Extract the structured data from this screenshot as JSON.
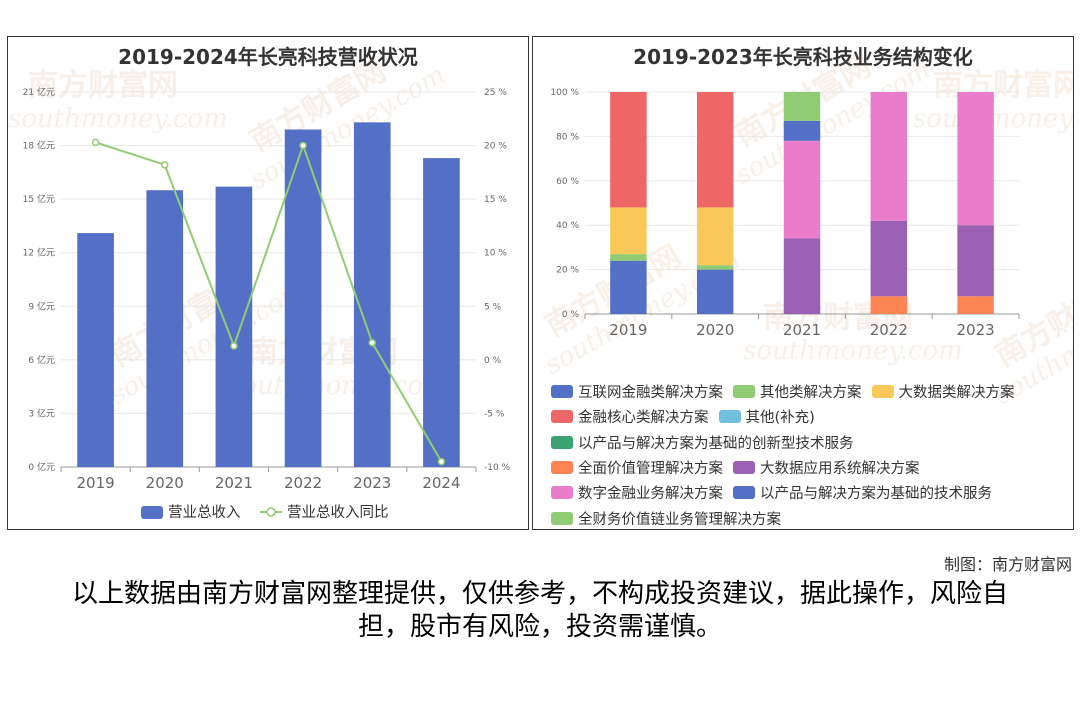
{
  "chart_data": [
    {
      "type": "bar+line",
      "title": "2019-2024年长亮科技营收状况",
      "categories": [
        "2019",
        "2020",
        "2021",
        "2022",
        "2023",
        "2024"
      ],
      "series": [
        {
          "name": "营业总收入",
          "type": "bar",
          "axis": "left",
          "color": "#5470c6",
          "values": [
            13.1,
            15.5,
            15.7,
            18.9,
            19.3,
            17.3
          ]
        },
        {
          "name": "营业总收入同比",
          "type": "line",
          "axis": "right",
          "color": "#91cc75",
          "values": [
            20.3,
            18.2,
            1.3,
            20.0,
            1.6,
            -9.5
          ]
        }
      ],
      "y_left": {
        "min": 0,
        "max": 21,
        "step": 3,
        "tick_labels": [
          "0 亿元",
          "3 亿元",
          "6 亿元",
          "9 亿元",
          "12 亿元",
          "15 亿元",
          "18 亿元",
          "21 亿元"
        ]
      },
      "y_right": {
        "min": -10,
        "max": 25,
        "step": 5,
        "tick_labels": [
          "-10 %",
          "-5 %",
          "0 %",
          "5 %",
          "10 %",
          "15 %",
          "20 %",
          "25 %"
        ]
      },
      "grid": true,
      "legend": "bottom"
    },
    {
      "type": "stacked_bar",
      "title": "2019-2023年长亮科技业务结构变化",
      "categories": [
        "2019",
        "2020",
        "2021",
        "2022",
        "2023"
      ],
      "y_tick_labels": [
        "0 %",
        "20 %",
        "40 %",
        "60 %",
        "80 %",
        "100 %"
      ],
      "ylim": [
        0,
        100
      ],
      "stack_order": [
        "全面价值管理解决方案",
        "互联网金融类解决方案",
        "其他类解决方案",
        "大数据类解决方案",
        "金融核心类解决方案",
        "大数据应用系统解决方案",
        "数字金融业务解决方案",
        "以产品与解决方案为基础的技术服务",
        "全财务价值链业务管理解决方案"
      ],
      "series": [
        {
          "name": "互联网金融类解决方案",
          "color": "#5470c6",
          "values": [
            24,
            20,
            0,
            0,
            0
          ]
        },
        {
          "name": "其他类解决方案",
          "color": "#91cc75",
          "values": [
            3,
            2,
            0,
            0,
            0
          ]
        },
        {
          "name": "大数据类解决方案",
          "color": "#fac858",
          "values": [
            21,
            26,
            0,
            0,
            0
          ]
        },
        {
          "name": "金融核心类解决方案",
          "color": "#ee6666",
          "values": [
            52,
            52,
            0,
            0,
            0
          ]
        },
        {
          "name": "其他(补充)",
          "color": "#73c0de",
          "values": [
            0,
            0,
            0,
            0,
            0
          ]
        },
        {
          "name": "以产品与解决方案为基础的创新型技术服务",
          "color": "#3ba272",
          "values": [
            0,
            0,
            0,
            0,
            0
          ]
        },
        {
          "name": "全面价值管理解决方案",
          "color": "#fc8452",
          "values": [
            0,
            0,
            0,
            8,
            8
          ]
        },
        {
          "name": "大数据应用系统解决方案",
          "color": "#9a60b4",
          "values": [
            0,
            0,
            34,
            34,
            32
          ]
        },
        {
          "name": "数字金融业务解决方案",
          "color": "#ea7ccc",
          "values": [
            0,
            0,
            44,
            58,
            60
          ]
        },
        {
          "name": "以产品与解决方案为基础的技术服务",
          "color": "#5470c6",
          "values": [
            0,
            0,
            9,
            0,
            0
          ]
        },
        {
          "name": "全财务价值链业务管理解决方案",
          "color": "#91cc75",
          "values": [
            0,
            0,
            13,
            0,
            0
          ]
        }
      ],
      "legend": "bottom"
    }
  ],
  "footer": {
    "credit": "制图：南方财富网",
    "disclaimer": "以上数据由南方财富网整理提供，仅供参考，不构成投资建议，据此操作，风险自担，股市有风险，投资需谨慎。"
  },
  "watermark": {
    "cn": "南方财富网",
    "en": "southmoney.com"
  }
}
